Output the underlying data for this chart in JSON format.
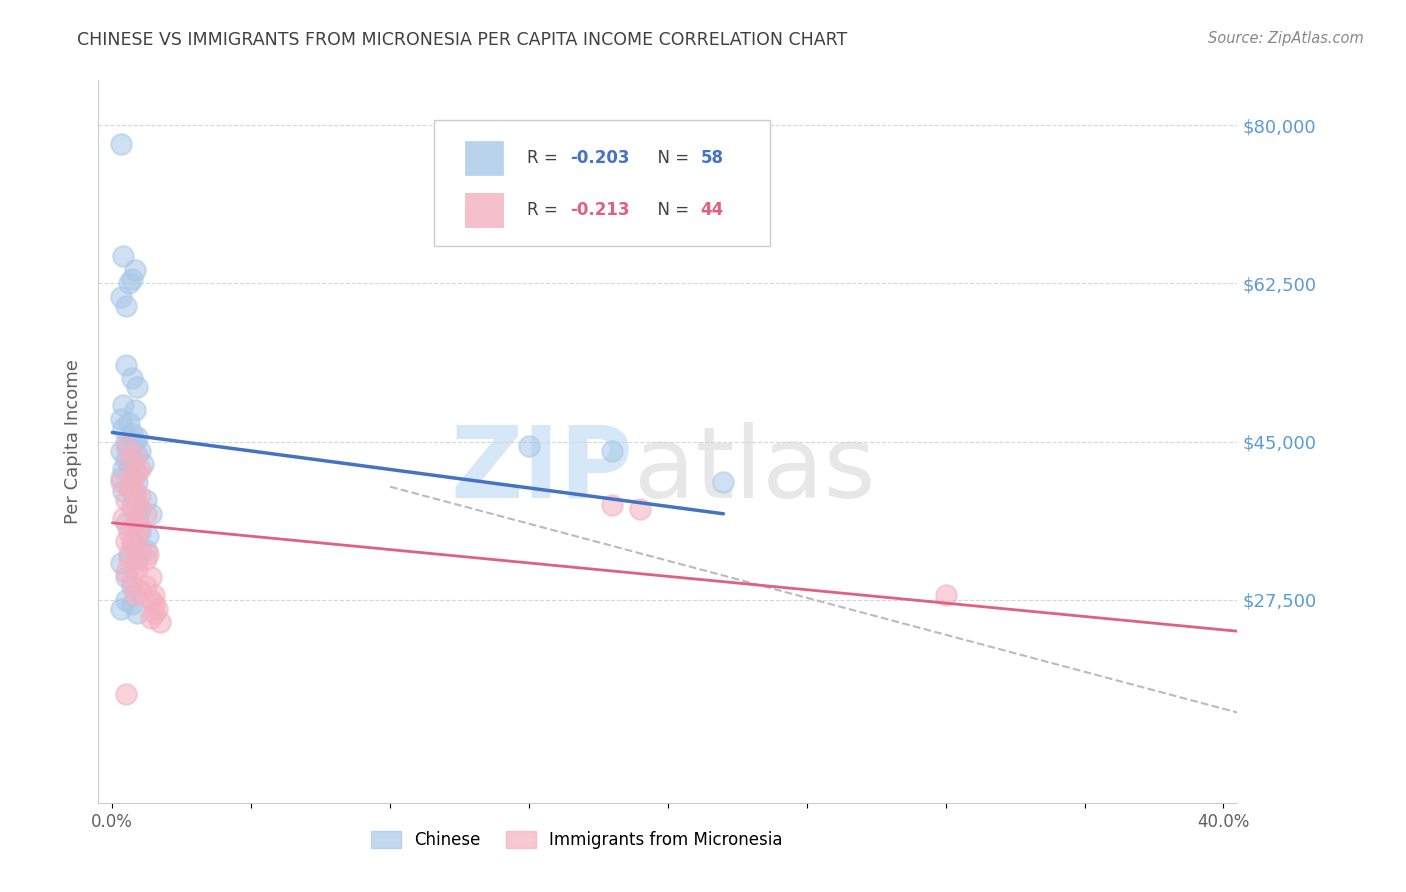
{
  "title": "CHINESE VS IMMIGRANTS FROM MICRONESIA PER CAPITA INCOME CORRELATION CHART",
  "source": "Source: ZipAtlas.com",
  "ylabel": "Per Capita Income",
  "xlim": [
    -0.005,
    0.405
  ],
  "ylim": [
    5000,
    85000
  ],
  "ytick_vals": [
    80000,
    62500,
    45000,
    27500
  ],
  "ytick_labels": [
    "$80,000",
    "$62,500",
    "$45,000",
    "$27,500"
  ],
  "xtick_vals": [
    0.0,
    0.05,
    0.1,
    0.15,
    0.2,
    0.25,
    0.3,
    0.35,
    0.4
  ],
  "xtick_labels": [
    "0.0%",
    "",
    "",
    "",
    "",
    "",
    "",
    "",
    "40.0%"
  ],
  "chinese_color": "#a8c8e8",
  "micronesia_color": "#f4b0c0",
  "chinese_line_color": "#4472c4",
  "micronesia_line_color": "#e06080",
  "dashed_line_color": "#bbbbbb",
  "watermark_zip_color": "#c5ddf5",
  "watermark_atlas_color": "#d5d5d5",
  "background_color": "#ffffff",
  "grid_color": "#cccccc",
  "title_color": "#404040",
  "ylabel_color": "#606060",
  "ytick_label_color": "#5b9bd5",
  "xtick_label_color": "#606060",
  "source_color": "#888888",
  "legend_text_color": "#404040",
  "legend_value_color": "#4472c4",
  "legend_micronesia_value_color": "#e06080",
  "chinese_dots": [
    [
      0.003,
      78000
    ],
    [
      0.004,
      65500
    ],
    [
      0.008,
      64000
    ],
    [
      0.007,
      63000
    ],
    [
      0.006,
      62500
    ],
    [
      0.003,
      61000
    ],
    [
      0.005,
      60000
    ],
    [
      0.005,
      53500
    ],
    [
      0.007,
      52000
    ],
    [
      0.009,
      51000
    ],
    [
      0.004,
      49000
    ],
    [
      0.008,
      48500
    ],
    [
      0.003,
      47500
    ],
    [
      0.006,
      47000
    ],
    [
      0.004,
      46500
    ],
    [
      0.007,
      46000
    ],
    [
      0.009,
      45500
    ],
    [
      0.005,
      45000
    ],
    [
      0.008,
      45000
    ],
    [
      0.006,
      44500
    ],
    [
      0.01,
      44000
    ],
    [
      0.003,
      44000
    ],
    [
      0.009,
      43500
    ],
    [
      0.007,
      43000
    ],
    [
      0.005,
      43000
    ],
    [
      0.011,
      42500
    ],
    [
      0.006,
      42000
    ],
    [
      0.004,
      42000
    ],
    [
      0.008,
      41500
    ],
    [
      0.003,
      41000
    ],
    [
      0.009,
      40500
    ],
    [
      0.006,
      40000
    ],
    [
      0.004,
      39500
    ],
    [
      0.008,
      39000
    ],
    [
      0.012,
      38500
    ],
    [
      0.007,
      38000
    ],
    [
      0.01,
      37500
    ],
    [
      0.014,
      37000
    ],
    [
      0.009,
      36500
    ],
    [
      0.005,
      36000
    ],
    [
      0.01,
      35000
    ],
    [
      0.013,
      34500
    ],
    [
      0.007,
      34000
    ],
    [
      0.008,
      33500
    ],
    [
      0.012,
      33000
    ],
    [
      0.006,
      32500
    ],
    [
      0.009,
      32000
    ],
    [
      0.003,
      31500
    ],
    [
      0.005,
      30000
    ],
    [
      0.007,
      29000
    ],
    [
      0.005,
      27500
    ],
    [
      0.007,
      27000
    ],
    [
      0.15,
      44500
    ],
    [
      0.18,
      44000
    ],
    [
      0.22,
      40500
    ],
    [
      0.003,
      26500
    ],
    [
      0.009,
      26000
    ]
  ],
  "micronesia_dots": [
    [
      0.005,
      44500
    ],
    [
      0.008,
      43500
    ],
    [
      0.006,
      43000
    ],
    [
      0.01,
      42000
    ],
    [
      0.009,
      41500
    ],
    [
      0.007,
      41000
    ],
    [
      0.003,
      40500
    ],
    [
      0.006,
      40000
    ],
    [
      0.008,
      39500
    ],
    [
      0.01,
      39000
    ],
    [
      0.005,
      38500
    ],
    [
      0.009,
      38000
    ],
    [
      0.007,
      37500
    ],
    [
      0.012,
      37000
    ],
    [
      0.004,
      36500
    ],
    [
      0.008,
      36000
    ],
    [
      0.01,
      35500
    ],
    [
      0.006,
      35000
    ],
    [
      0.009,
      34500
    ],
    [
      0.005,
      34000
    ],
    [
      0.007,
      33500
    ],
    [
      0.01,
      33000
    ],
    [
      0.013,
      32500
    ],
    [
      0.006,
      32000
    ],
    [
      0.012,
      32000
    ],
    [
      0.008,
      31500
    ],
    [
      0.009,
      31000
    ],
    [
      0.005,
      30500
    ],
    [
      0.014,
      30000
    ],
    [
      0.007,
      29500
    ],
    [
      0.012,
      29000
    ],
    [
      0.01,
      28500
    ],
    [
      0.008,
      28000
    ],
    [
      0.015,
      28000
    ],
    [
      0.014,
      27500
    ],
    [
      0.015,
      27000
    ],
    [
      0.016,
      26500
    ],
    [
      0.015,
      26000
    ],
    [
      0.014,
      25500
    ],
    [
      0.017,
      25000
    ],
    [
      0.3,
      28000
    ],
    [
      0.005,
      17000
    ],
    [
      0.18,
      38000
    ],
    [
      0.19,
      37500
    ]
  ],
  "chinese_trend_x": [
    0.0,
    0.22
  ],
  "chinese_trend_y": [
    46000,
    37000
  ],
  "micronesia_trend_x": [
    0.0,
    0.405
  ],
  "micronesia_trend_y": [
    36000,
    24000
  ],
  "dashed_line_x": [
    0.1,
    0.405
  ],
  "dashed_line_y": [
    40000,
    15000
  ]
}
